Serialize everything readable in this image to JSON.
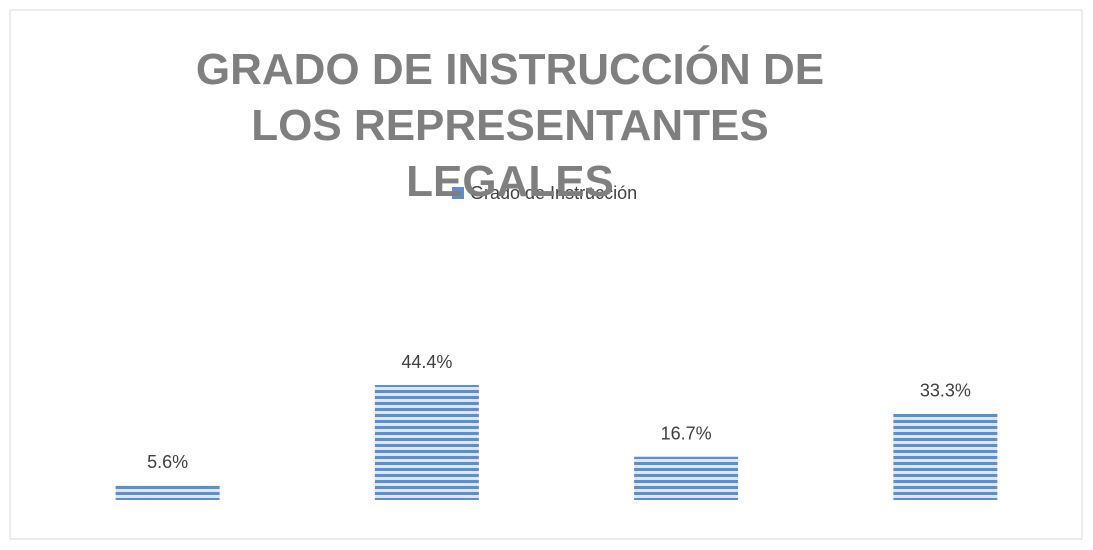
{
  "chart_data": {
    "type": "bar",
    "title": "GRADO DE INSTRUCCIÓN DE LOS REPRESENTANTES LEGALES",
    "categories": [
      null,
      null,
      null,
      null
    ],
    "series": [
      {
        "name": "Grado de Instrucción",
        "color": "#5b8fcf",
        "values": [
          5.6,
          44.4,
          16.7,
          33.3
        ],
        "value_labels": [
          "5.6%",
          "44.4%",
          "16.7%",
          "33.3%"
        ]
      }
    ],
    "legend": "top"
  }
}
